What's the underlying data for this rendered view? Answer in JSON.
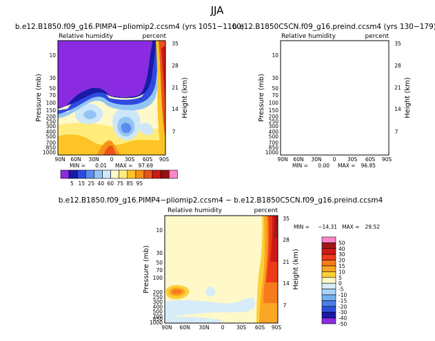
{
  "page_title": "JJA",
  "common": {
    "field_label": "Relative humidity",
    "units": "percent",
    "ylabel_left": "Pressure (mb)",
    "ylabel_right": "Height (km)",
    "pressure_ticks": [
      "10",
      "30",
      "50",
      "70",
      "100",
      "150",
      "200",
      "250",
      "300",
      "400",
      "500",
      "700",
      "850",
      "1000"
    ],
    "height_ticks": [
      "7",
      "14",
      "21",
      "28",
      "35"
    ],
    "lat_ticks": [
      "90N",
      "60N",
      "30N",
      "0",
      "30S",
      "60S",
      "90S"
    ],
    "pressure_ticks_diff": [
      "10",
      "30",
      "50",
      "70",
      "100",
      "200",
      "250",
      "300",
      "400",
      "500",
      "700",
      "850",
      "1000"
    ]
  },
  "colorbar_main": {
    "labels": [
      "5",
      "15",
      "25",
      "40",
      "60",
      "75",
      "85",
      "95"
    ],
    "colors": [
      "#8a2be2",
      "#1a1aa6",
      "#2f4ae0",
      "#5a8cf0",
      "#93c4f5",
      "#cde6f8",
      "#fff8c8",
      "#ffec7a",
      "#fdc428",
      "#f79218",
      "#ea5418",
      "#cc1818",
      "#991010",
      "#ff86c8"
    ]
  },
  "colorbar_diff": {
    "labels": [
      "50",
      "40",
      "30",
      "20",
      "15",
      "10",
      "5",
      "0",
      "-5",
      "-10",
      "-15",
      "-20",
      "-30",
      "-40",
      "-50"
    ],
    "colors": [
      "#ff86c8",
      "#a01818",
      "#cf1818",
      "#ee3a18",
      "#f77a1c",
      "#fba624",
      "#fdd038",
      "#fff8c8",
      "#d6ecf8",
      "#a9d3f6",
      "#72aef0",
      "#4a7ee6",
      "#2e4fd8",
      "#1a1aa6",
      "#8a2be2"
    ]
  },
  "chart_data": [
    {
      "type": "heatmap",
      "title": "b.e12.B1850.f09_g16.PIMP4−pliomip2.ccsm4  (yrs 1051−1100)",
      "field": "Relative humidity",
      "units": "percent",
      "x_axis": "latitude",
      "x_ticks": [
        "90N",
        "60N",
        "30N",
        "0",
        "30S",
        "60S",
        "90S"
      ],
      "y_axis": "pressure (mb)",
      "ylim": [
        1000,
        5
      ],
      "stats": {
        "min_label": "MIN =",
        "min": "0.01",
        "max_label": "MAX =",
        "max": "97.69"
      }
    },
    {
      "type": "heatmap",
      "title": "b.e12.B1850C5CN.f09_g16.preind.ccsm4  (yrs 130−179)",
      "field": "Relative humidity",
      "units": "percent",
      "x_axis": "latitude",
      "x_ticks": [
        "90N",
        "60N",
        "30N",
        "0",
        "30S",
        "60S",
        "90S"
      ],
      "y_axis": "pressure (mb)",
      "ylim": [
        1000,
        5
      ],
      "stats": {
        "min_label": "MIN =",
        "min": "0.00",
        "max_label": "MAX =",
        "max": "96.85"
      }
    },
    {
      "type": "heatmap",
      "title": "b.e12.B1850.f09_g16.PIMP4−pliomip2.ccsm4  −  b.e12.B1850C5CN.f09_g16.preind.ccsm4",
      "field": "Relative humidity",
      "units": "percent",
      "x_axis": "latitude",
      "x_ticks": [
        "90N",
        "60N",
        "30N",
        "0",
        "30S",
        "60S",
        "90S"
      ],
      "y_axis": "pressure (mb)",
      "ylim": [
        1000,
        5
      ],
      "stats": {
        "min_label": "MIN =",
        "min": "−14.31",
        "max_label": "MAX =",
        "max": "29.52"
      }
    }
  ]
}
